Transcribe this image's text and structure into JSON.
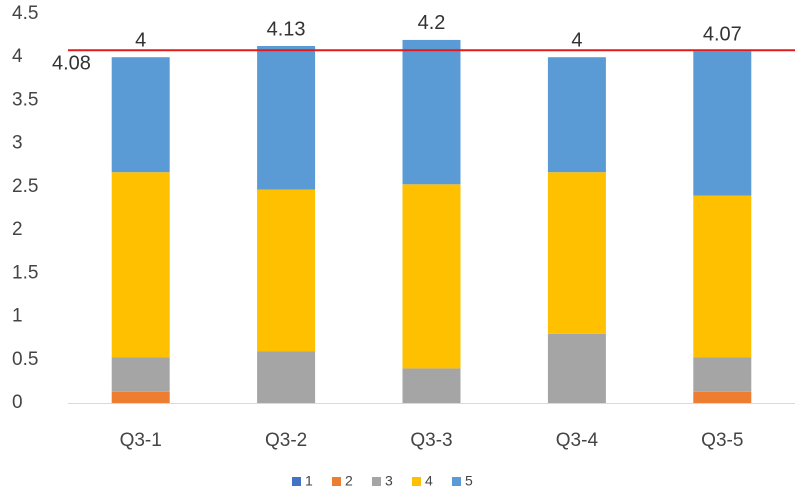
{
  "chart_data": {
    "type": "stacked_bar",
    "categories": [
      "Q3-1",
      "Q3-2",
      "Q3-3",
      "Q3-4",
      "Q3-5"
    ],
    "series": [
      {
        "name": "1",
        "color": "#4472c4",
        "values": [
          0,
          0,
          0,
          0,
          0
        ]
      },
      {
        "name": "2",
        "color": "#ed7d31",
        "values": [
          0.13,
          0,
          0,
          0,
          0.13
        ]
      },
      {
        "name": "3",
        "color": "#a5a5a5",
        "values": [
          0.4,
          0.6,
          0.4,
          0.8,
          0.4
        ]
      },
      {
        "name": "4",
        "color": "#ffc000",
        "values": [
          2.14,
          1.87,
          2.13,
          1.87,
          1.87
        ]
      },
      {
        "name": "5",
        "color": "#5b9bd5",
        "values": [
          1.33,
          1.66,
          1.67,
          1.33,
          1.67
        ]
      }
    ],
    "totals": [
      4,
      4.13,
      4.2,
      4,
      4.07
    ],
    "reference_line": {
      "value": 4.08,
      "color": "#e31a1c"
    },
    "ylim": [
      0,
      4.5
    ],
    "yticks": [
      0,
      0.5,
      1,
      1.5,
      2,
      2.5,
      3,
      3.5,
      4,
      4.5
    ],
    "grid": false,
    "legend": "bottom"
  }
}
